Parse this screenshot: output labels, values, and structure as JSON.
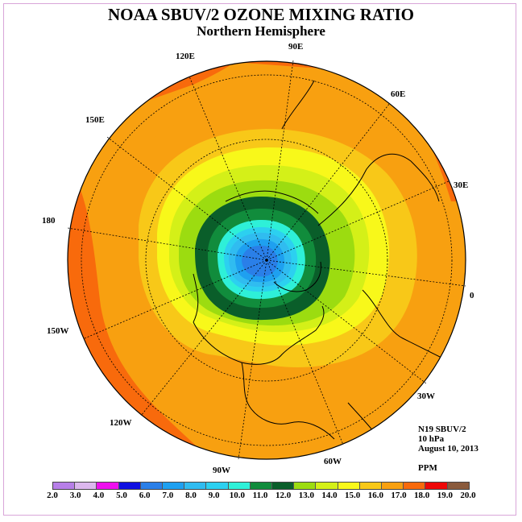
{
  "title": "NOAA SBUV/2 OZONE MIXING RATIO",
  "subtitle": "Northern Hemisphere",
  "info": {
    "satellite": "N19 SBUV/2",
    "level": "10 hPa",
    "date": "August 10, 2013",
    "units": "PPM"
  },
  "longitude_labels": [
    "0",
    "30E",
    "60E",
    "90E",
    "120E",
    "150E",
    "180",
    "150W",
    "120W",
    "90W",
    "60W",
    "30W"
  ],
  "colorbar": {
    "ticks": [
      "2.0",
      "3.0",
      "4.0",
      "5.0",
      "6.0",
      "7.0",
      "8.0",
      "9.0",
      "10.0",
      "11.0",
      "12.0",
      "13.0",
      "14.0",
      "15.0",
      "16.0",
      "17.0",
      "18.0",
      "19.0",
      "20.0"
    ],
    "colors": [
      "#b77fe8",
      "#dcb7ee",
      "#ee10ee",
      "#1010e0",
      "#2a7fe8",
      "#1ea0f0",
      "#30bcf0",
      "#2cd0f0",
      "#2ef0d8",
      "#118c3c",
      "#0a5e2a",
      "#9cdc10",
      "#d4f018",
      "#f8f81a",
      "#f8c818",
      "#f8a010",
      "#f86a0c",
      "#ee0808",
      "#8a5a3c"
    ]
  },
  "colors": {
    "background": "#ffffff",
    "frame": "#d9a6d9"
  }
}
